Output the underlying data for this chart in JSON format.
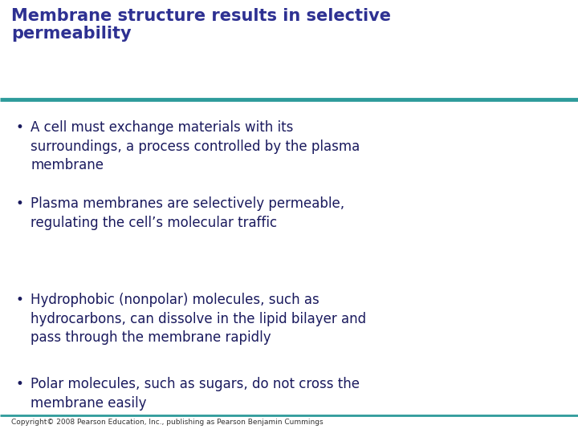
{
  "title_line1": "Membrane structure results in selective",
  "title_line2": "permeability",
  "title_color": "#2e3192",
  "title_fontsize": 15,
  "rule_color": "#2e9b9b",
  "background_color": "#ffffff",
  "bullet_color": "#1a1a5e",
  "bullet_fontsize": 12,
  "bullets": [
    "A cell must exchange materials with its\nsurroundings, a process controlled by the plasma\nmembrane",
    "Plasma membranes are selectively permeable,\nregulating the cell’s molecular traffic",
    "Hydrophobic (nonpolar) molecules, such as\nhydrocarbons, can dissolve in the lipid bilayer and\npass through the membrane rapidly",
    "Polar molecules, such as sugars, do not cross the\nmembrane easily"
  ],
  "copyright": "Copyright© 2008 Pearson Education, Inc., publishing as Pearson Benjamin Cummings",
  "copyright_fontsize": 6.5,
  "copyright_color": "#333333"
}
